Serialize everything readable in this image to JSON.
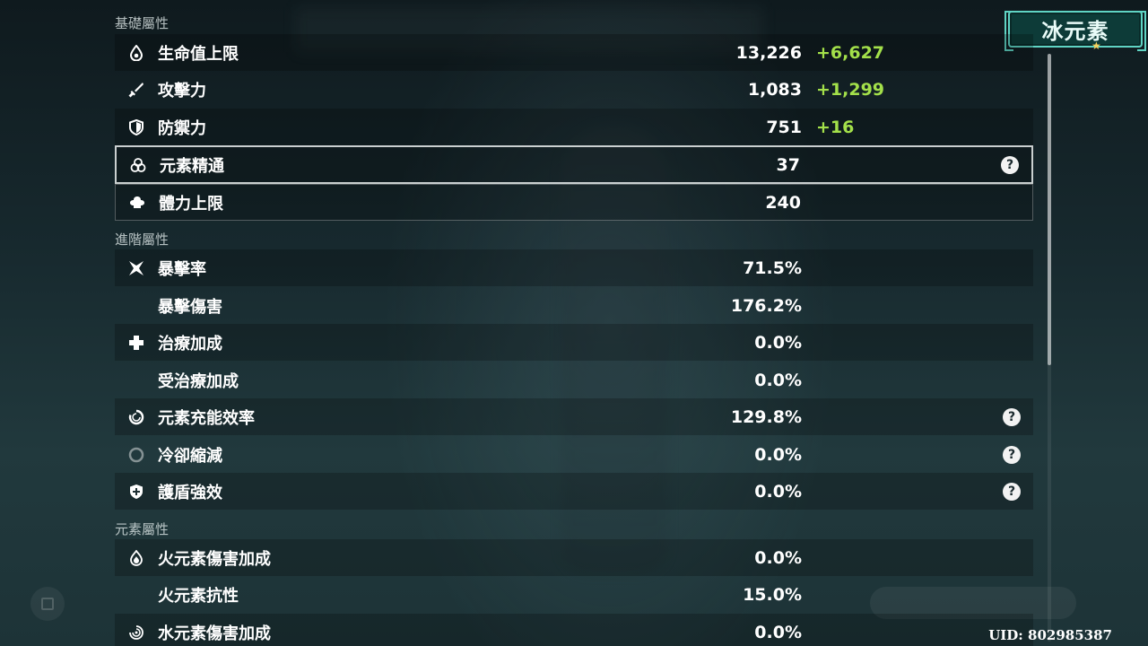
{
  "element_badge": {
    "label": "冰元素"
  },
  "sections": {
    "basic": "基礎屬性",
    "advanced": "進階屬性",
    "elemental": "元素屬性"
  },
  "rows": [
    {
      "label": "生命值上限",
      "value": "13,226",
      "bonus": "+6,627",
      "icon": "hp-drop-icon"
    },
    {
      "label": "攻擊力",
      "value": "1,083",
      "bonus": "+1,299",
      "icon": "sword-icon"
    },
    {
      "label": "防禦力",
      "value": "751",
      "bonus": "+16",
      "icon": "shield-icon"
    },
    {
      "label": "元素精通",
      "value": "37",
      "icon": "elemental-mastery-icon",
      "help": "?"
    },
    {
      "label": "體力上限",
      "value": "240",
      "icon": "stamina-icon"
    },
    {
      "label": "暴擊率",
      "value": "71.5%",
      "icon": "crit-rate-icon"
    },
    {
      "label": "暴擊傷害",
      "value": "176.2%"
    },
    {
      "label": "治療加成",
      "value": "0.0%",
      "icon": "healing-cross-icon"
    },
    {
      "label": "受治療加成",
      "value": "0.0%"
    },
    {
      "label": "元素充能效率",
      "value": "129.8%",
      "icon": "energy-recharge-icon",
      "help": "?"
    },
    {
      "label": "冷卻縮減",
      "value": "0.0%",
      "icon": "cooldown-icon",
      "help": "?"
    },
    {
      "label": "護盾強效",
      "value": "0.0%",
      "icon": "shield-strength-icon",
      "help": "?"
    },
    {
      "label": "火元素傷害加成",
      "value": "0.0%",
      "icon": "pyro-icon"
    },
    {
      "label": "火元素抗性",
      "value": "15.0%"
    },
    {
      "label": "水元素傷害加成",
      "value": "0.0%",
      "icon": "hydro-icon"
    }
  ],
  "uid": "UID: 802985387",
  "colors": {
    "bonus": "#a3e04a",
    "badge_border": "#5fd4c4",
    "badge_bg": "#0d3b38"
  }
}
